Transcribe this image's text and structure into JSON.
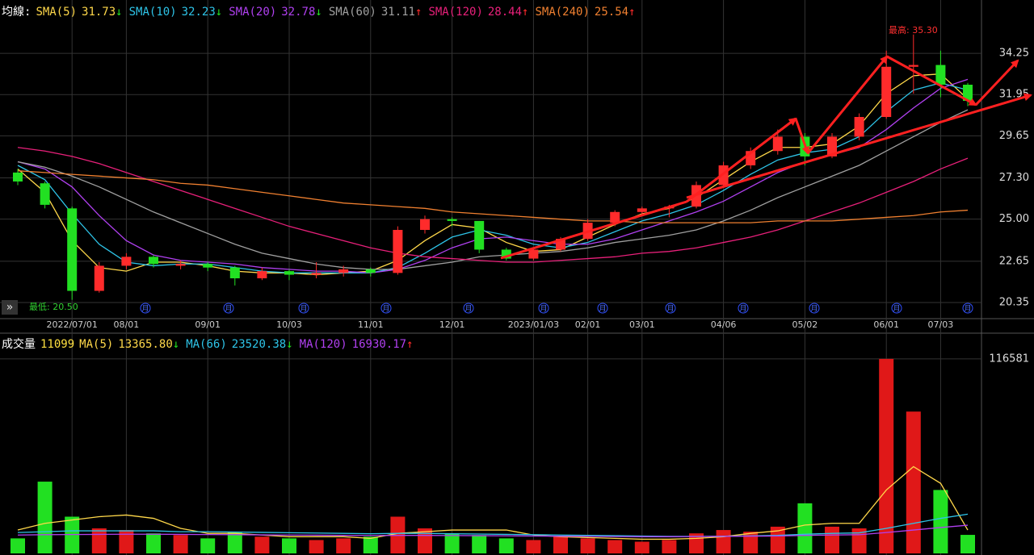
{
  "chart_data": [
    {
      "type": "candlestick",
      "title": "均線:",
      "categories": [
        null,
        null,
        "2022/07/01",
        null,
        "08/01",
        null,
        null,
        "09/01",
        null,
        null,
        "10/03",
        null,
        null,
        "11/01",
        null,
        null,
        "12/01",
        null,
        null,
        "2023/01/03",
        null,
        "02/01",
        null,
        "03/01",
        null,
        null,
        "04/06",
        null,
        null,
        "05/02",
        null,
        null,
        "06/01",
        null,
        "07/03",
        null
      ],
      "open": [
        27.6,
        27.0,
        25.6,
        21.0,
        22.4,
        22.9,
        22.4,
        22.5,
        22.3,
        21.7,
        22.1,
        21.9,
        22.0,
        22.2,
        22.0,
        24.4,
        25.0,
        24.9,
        23.3,
        22.8,
        23.3,
        23.9,
        24.8,
        25.4,
        25.6,
        25.7,
        26.9,
        28.0,
        28.8,
        29.6,
        28.5,
        29.6,
        30.7,
        33.5,
        33.6,
        32.5
      ],
      "high": [
        27.8,
        27.1,
        25.7,
        22.6,
        23.1,
        23.0,
        22.7,
        22.6,
        22.4,
        22.3,
        22.2,
        22.6,
        22.4,
        22.3,
        24.6,
        25.2,
        25.1,
        24.9,
        23.4,
        23.4,
        24.0,
        25.0,
        25.5,
        25.7,
        25.8,
        27.1,
        28.2,
        29.0,
        30.0,
        29.8,
        29.8,
        30.9,
        34.4,
        35.3,
        34.4,
        32.6
      ],
      "low": [
        26.9,
        25.6,
        20.5,
        20.9,
        22.2,
        22.3,
        22.2,
        22.1,
        21.3,
        21.6,
        21.6,
        21.7,
        21.8,
        21.8,
        21.9,
        24.2,
        24.6,
        23.1,
        22.7,
        22.7,
        23.2,
        23.8,
        24.6,
        25.2,
        25.1,
        25.6,
        26.8,
        27.8,
        28.6,
        28.0,
        28.4,
        29.4,
        30.6,
        32.0,
        31.8,
        31.3
      ],
      "close": [
        27.1,
        25.8,
        21.0,
        22.4,
        22.9,
        22.5,
        22.5,
        22.3,
        21.7,
        22.1,
        21.9,
        22.0,
        22.2,
        22.0,
        24.4,
        25.0,
        24.9,
        23.3,
        22.8,
        23.3,
        23.9,
        24.8,
        25.4,
        25.6,
        25.7,
        26.9,
        28.0,
        28.8,
        29.6,
        28.5,
        29.6,
        30.7,
        33.5,
        33.6,
        32.5,
        31.6
      ],
      "up_color": "#ff2b2b",
      "down_color": "#22e022",
      "series": [
        {
          "name": "SMA(5)",
          "color": "#ffd84a",
          "last": 31.73,
          "trend": "↓",
          "trend_color": "#22e022",
          "values": [
            27.8,
            26.5,
            23.8,
            22.3,
            22.1,
            22.6,
            22.6,
            22.4,
            22.1,
            22.0,
            22.0,
            21.9,
            22.0,
            22.1,
            22.7,
            23.8,
            24.7,
            24.5,
            23.7,
            23.2,
            23.3,
            24.0,
            24.7,
            25.3,
            25.6,
            26.2,
            27.2,
            28.2,
            29.0,
            29.0,
            29.2,
            30.2,
            32.0,
            33.0,
            33.1,
            31.7
          ]
        },
        {
          "name": "SMA(10)",
          "color": "#2ec4e8",
          "last": 32.23,
          "trend": "↓",
          "trend_color": "#22e022",
          "values": [
            28.0,
            27.2,
            25.3,
            23.6,
            22.6,
            22.4,
            22.5,
            22.5,
            22.3,
            22.1,
            22.0,
            22.0,
            22.0,
            22.0,
            22.3,
            23.1,
            24.0,
            24.4,
            24.1,
            23.6,
            23.4,
            23.7,
            24.3,
            24.9,
            25.3,
            25.8,
            26.6,
            27.5,
            28.3,
            28.7,
            28.9,
            29.6,
            31.0,
            32.2,
            32.6,
            32.2
          ]
        },
        {
          "name": "SMA(20)",
          "color": "#b040f0",
          "last": 32.78,
          "trend": "↓",
          "trend_color": "#22e022",
          "values": [
            28.2,
            27.8,
            26.8,
            25.2,
            23.8,
            23.0,
            22.7,
            22.6,
            22.5,
            22.3,
            22.2,
            22.1,
            22.1,
            22.0,
            22.2,
            22.7,
            23.4,
            23.9,
            24.0,
            23.8,
            23.6,
            23.6,
            23.9,
            24.4,
            24.9,
            25.4,
            26.0,
            26.8,
            27.6,
            28.2,
            28.6,
            29.0,
            30.0,
            31.2,
            32.3,
            32.8
          ]
        },
        {
          "name": "SMA(60)",
          "color": "#a0a0a0",
          "last": 31.11,
          "trend": "↑",
          "trend_color": "#ff2b2b",
          "values": [
            28.2,
            27.9,
            27.4,
            26.8,
            26.1,
            25.4,
            24.8,
            24.2,
            23.6,
            23.1,
            22.8,
            22.5,
            22.3,
            22.2,
            22.2,
            22.4,
            22.6,
            22.9,
            23.0,
            23.1,
            23.2,
            23.4,
            23.7,
            23.9,
            24.1,
            24.4,
            24.9,
            25.5,
            26.2,
            26.8,
            27.4,
            28.0,
            28.8,
            29.6,
            30.4,
            31.1
          ]
        },
        {
          "name": "SMA(120)",
          "color": "#e8207a",
          "last": 28.44,
          "trend": "↑",
          "trend_color": "#ff2b2b",
          "values": [
            29.0,
            28.8,
            28.5,
            28.1,
            27.6,
            27.1,
            26.6,
            26.1,
            25.6,
            25.1,
            24.6,
            24.2,
            23.8,
            23.4,
            23.1,
            22.9,
            22.8,
            22.7,
            22.6,
            22.6,
            22.7,
            22.8,
            22.9,
            23.1,
            23.2,
            23.4,
            23.7,
            24.0,
            24.4,
            24.9,
            25.4,
            25.9,
            26.5,
            27.1,
            27.8,
            28.4
          ]
        },
        {
          "name": "SMA(240)",
          "color": "#f08030",
          "last": 25.54,
          "trend": "↑",
          "trend_color": "#ff2b2b",
          "values": [
            27.7,
            27.6,
            27.5,
            27.4,
            27.3,
            27.2,
            27.0,
            26.9,
            26.7,
            26.5,
            26.3,
            26.1,
            25.9,
            25.8,
            25.7,
            25.6,
            25.4,
            25.3,
            25.2,
            25.1,
            25.0,
            24.9,
            24.9,
            24.8,
            24.8,
            24.8,
            24.8,
            24.8,
            24.9,
            24.9,
            24.9,
            25.0,
            25.1,
            25.2,
            25.4,
            25.5
          ]
        }
      ],
      "ylim": [
        19.45,
        37.0
      ],
      "yticks": [
        20.35,
        22.65,
        {
          "value": 25,
          "label": "25.00"
        },
        {
          "value": 27.3,
          "label": "27.30"
        },
        29.65,
        31.95,
        34.25
      ],
      "grid": true,
      "annotations": [
        {
          "text": "最高: 35.30"
        },
        {
          "text": "最低: 20.50"
        }
      ],
      "event_marker": "月",
      "button": "»"
    },
    {
      "type": "bar",
      "title": "成交量",
      "last": 11099,
      "last_color": "#ffe040",
      "values": [
        9000,
        43000,
        22000,
        15000,
        14000,
        12000,
        11000,
        9000,
        13000,
        10000,
        9000,
        8000,
        9000,
        10000,
        22000,
        15000,
        12000,
        11000,
        9000,
        8000,
        10000,
        9000,
        8000,
        7000,
        8000,
        12000,
        14000,
        13000,
        16000,
        30000,
        16000,
        15000,
        116581,
        85000,
        38000,
        11099
      ],
      "up_color": "#e01818",
      "down_color": "#22e022",
      "series": [
        {
          "name": "MA(5)",
          "color": "#ffd84a",
          "last": {
            "value": 13365.8,
            "label": "13365.80"
          },
          "trend": "↓",
          "trend_color": "#22e022",
          "values": [
            14000,
            18000,
            20000,
            22000,
            23000,
            21000,
            15000,
            12000,
            12000,
            11000,
            10000,
            10000,
            10000,
            9000,
            12000,
            13000,
            14000,
            14000,
            14000,
            11000,
            10000,
            9500,
            9000,
            8500,
            8500,
            9000,
            10000,
            12000,
            13500,
            17000,
            18000,
            18000,
            38000,
            52000,
            42000,
            14000
          ]
        },
        {
          "name": "MA(66)",
          "color": "#2ec4e8",
          "last": 23520.38,
          "trend": "↓",
          "trend_color": "#22e022",
          "values": [
            12500,
            13000,
            13500,
            13500,
            13500,
            13500,
            13000,
            13000,
            12800,
            12600,
            12400,
            12200,
            12000,
            11800,
            12000,
            12000,
            11800,
            11600,
            11400,
            11200,
            11000,
            10800,
            10600,
            10400,
            10200,
            10200,
            10300,
            10500,
            10800,
            11500,
            12000,
            12300,
            15000,
            18000,
            21000,
            23500
          ]
        },
        {
          "name": "MA(120)",
          "color": "#b040f0",
          "last": 16930.17,
          "trend": "↑",
          "trend_color": "#ff2b2b",
          "values": [
            11000,
            11200,
            11300,
            11400,
            11500,
            11500,
            11400,
            11300,
            11200,
            11100,
            11000,
            10900,
            10800,
            10700,
            10800,
            10800,
            10700,
            10600,
            10500,
            10400,
            10300,
            10200,
            10100,
            10000,
            10000,
            10100,
            10200,
            10300,
            10400,
            10800,
            11000,
            11200,
            12500,
            14000,
            15500,
            16900
          ]
        }
      ],
      "ylim": [
        0,
        132000
      ],
      "yticks": [
        116581
      ]
    }
  ]
}
